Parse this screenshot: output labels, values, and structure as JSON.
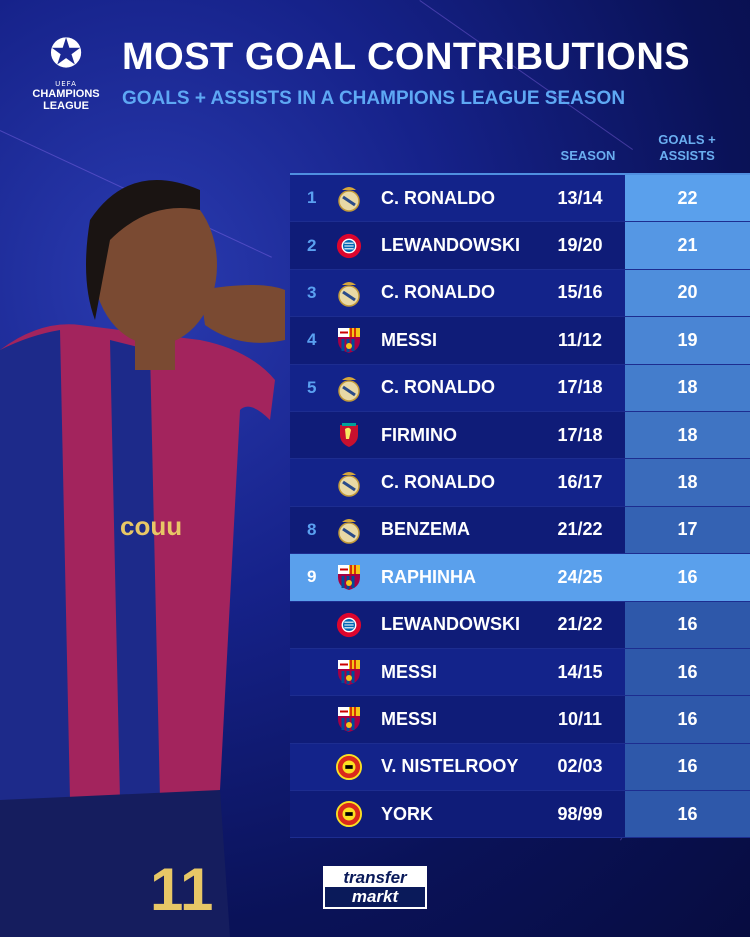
{
  "logo": {
    "uefa": "UEFA",
    "line1": "CHAMPIONS",
    "line2": "LEAGUE"
  },
  "title": "MOST GOAL CONTRIBUTIONS",
  "subtitle": "GOALS + ASSISTS IN A CHAMPIONS LEAGUE SEASON",
  "headers": {
    "season": "SEASON",
    "ga_line1": "GOALS +",
    "ga_line2": "ASSISTS"
  },
  "highlight_color": "#5aa0ec",
  "rows": [
    {
      "rank": "1",
      "club": "real-madrid",
      "name": "C. RONALDO",
      "season": "13/14",
      "value": "22"
    },
    {
      "rank": "2",
      "club": "bayern-munich",
      "name": "LEWANDOWSKI",
      "season": "19/20",
      "value": "21"
    },
    {
      "rank": "3",
      "club": "real-madrid",
      "name": "C. RONALDO",
      "season": "15/16",
      "value": "20"
    },
    {
      "rank": "4",
      "club": "barcelona",
      "name": "MESSI",
      "season": "11/12",
      "value": "19"
    },
    {
      "rank": "5",
      "club": "real-madrid",
      "name": "C. RONALDO",
      "season": "17/18",
      "value": "18"
    },
    {
      "rank": "",
      "club": "liverpool",
      "name": "FIRMINO",
      "season": "17/18",
      "value": "18"
    },
    {
      "rank": "",
      "club": "real-madrid",
      "name": "C. RONALDO",
      "season": "16/17",
      "value": "18"
    },
    {
      "rank": "8",
      "club": "real-madrid",
      "name": "BENZEMA",
      "season": "21/22",
      "value": "17"
    },
    {
      "rank": "9",
      "club": "barcelona",
      "name": "RAPHINHA",
      "season": "24/25",
      "value": "16",
      "highlight": true
    },
    {
      "rank": "",
      "club": "bayern-munich",
      "name": "LEWANDOWSKI",
      "season": "21/22",
      "value": "16"
    },
    {
      "rank": "",
      "club": "barcelona",
      "name": "MESSI",
      "season": "14/15",
      "value": "16"
    },
    {
      "rank": "",
      "club": "barcelona",
      "name": "MESSI",
      "season": "10/11",
      "value": "16"
    },
    {
      "rank": "",
      "club": "manchester-united",
      "name": "V. NISTELROOY",
      "season": "02/03",
      "value": "16"
    },
    {
      "rank": "",
      "club": "manchester-united",
      "name": "YORK",
      "season": "98/99",
      "value": "16"
    }
  ],
  "footer": {
    "brand_line1": "transfer",
    "brand_line2": "markt"
  }
}
